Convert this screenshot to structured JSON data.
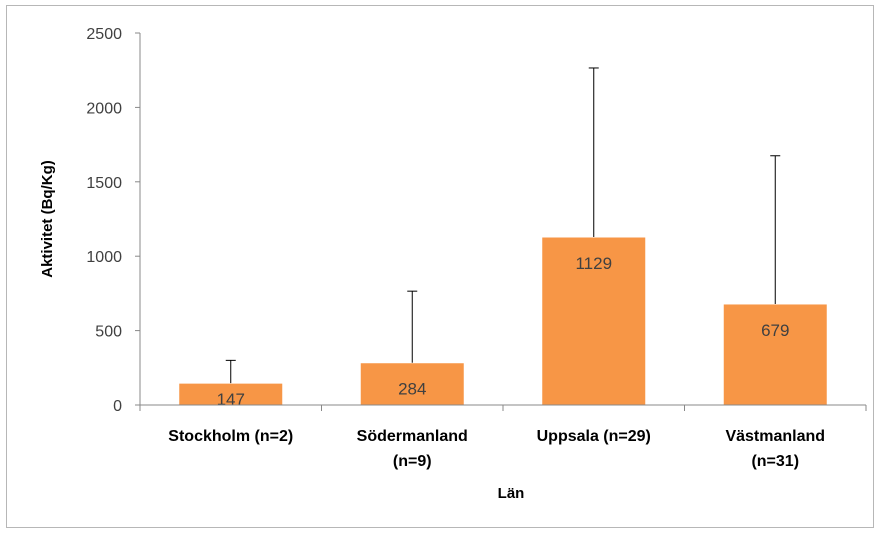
{
  "chart_data": {
    "type": "bar",
    "title": "",
    "xlabel": "Län",
    "ylabel": "Aktivitet (Bq/Kg)",
    "categories": [
      [
        "Stockholm (n=2)"
      ],
      [
        "Södermanland",
        "(n=9)"
      ],
      [
        "Uppsala (n=29)"
      ],
      [
        "Västmanland",
        "(n=31)"
      ]
    ],
    "values": [
      147,
      284,
      1129,
      679
    ],
    "error_upper": [
      300,
      765,
      2265,
      1675
    ],
    "data_labels": [
      "147",
      "284",
      "1129",
      "679"
    ],
    "ylim": [
      0,
      2500
    ],
    "yticks": [
      0,
      500,
      1000,
      1500,
      2000,
      2500
    ],
    "grid": false,
    "legend": "none",
    "colors": {
      "bar": "#f79646",
      "bar_edge": "#ffffff",
      "axis": "#888888",
      "error": "#000000"
    }
  }
}
